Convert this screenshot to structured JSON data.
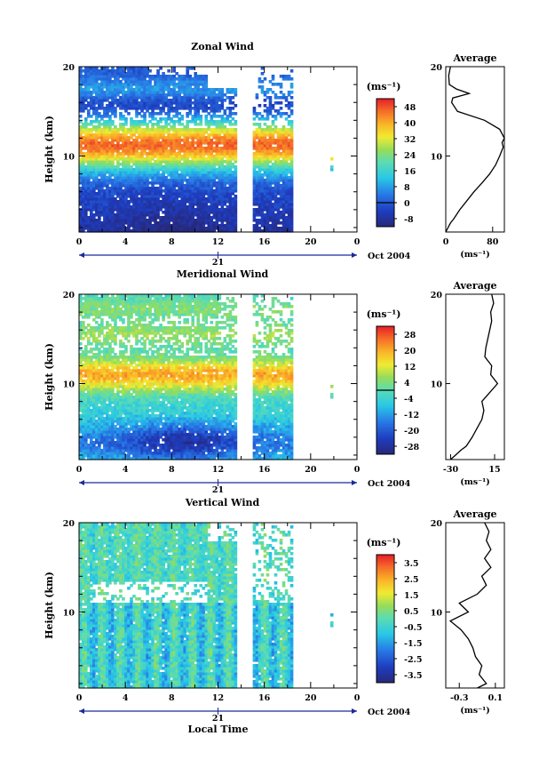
{
  "chart_data": [
    {
      "type": "heatmap",
      "title": "Zonal Wind",
      "ylabel": "Height (km)",
      "xlabel": "",
      "x_ticks": [
        "0",
        "4",
        "8",
        "12",
        "16",
        "20",
        "0"
      ],
      "y_ticks": [
        "10",
        "20"
      ],
      "xlim": [
        0,
        24
      ],
      "ylim": [
        1.5,
        20
      ],
      "date_tick": "21",
      "date_label": "Oct 2004",
      "colorbar": {
        "unit": "(ms⁻¹)",
        "ticks": [
          "48",
          "40",
          "32",
          "24",
          "16",
          "8",
          "0",
          "-8"
        ],
        "range": [
          -12,
          52
        ],
        "zero_line": 0
      },
      "field": "zonal",
      "data_gap": [
        [
          13.7,
          15.0
        ]
      ],
      "data_end": 18.5,
      "profile": {
        "title": "Average",
        "xlabel": "(ms⁻¹)",
        "x_ticks": [
          "0",
          "80"
        ],
        "xlim": [
          0,
          100
        ],
        "heights": [
          1.5,
          2,
          2.5,
          3,
          4,
          5,
          6,
          7,
          8,
          9,
          10,
          11,
          11.5,
          12,
          13,
          14,
          15,
          16,
          16.5,
          17,
          17.5,
          18,
          19,
          20
        ],
        "values": [
          0,
          4,
          8,
          14,
          24,
          36,
          48,
          62,
          75,
          85,
          92,
          98,
          96,
          100,
          92,
          66,
          20,
          10,
          12,
          40,
          18,
          6,
          5,
          8
        ]
      }
    },
    {
      "type": "heatmap",
      "title": "Meridional Wind",
      "ylabel": "Height (km)",
      "xlabel": "",
      "x_ticks": [
        "0",
        "4",
        "8",
        "12",
        "16",
        "20",
        "0"
      ],
      "y_ticks": [
        "10",
        "20"
      ],
      "xlim": [
        0,
        24
      ],
      "ylim": [
        1.5,
        20
      ],
      "date_tick": "21",
      "date_label": "Oct 2004",
      "colorbar": {
        "unit": "(ms⁻¹)",
        "ticks": [
          "28",
          "20",
          "12",
          "4",
          "-4",
          "-12",
          "-20",
          "-28"
        ],
        "range": [
          -32,
          32
        ],
        "zero_line": 0
      },
      "field": "meridional",
      "data_gap": [
        [
          13.7,
          15.0
        ]
      ],
      "data_end": 18.5,
      "profile": {
        "title": "Average",
        "xlabel": "(ms⁻¹)",
        "x_ticks": [
          "-30",
          "15"
        ],
        "xlim": [
          -35,
          25
        ],
        "heights": [
          1.5,
          2,
          2.5,
          3,
          4,
          5,
          6,
          7,
          8,
          9,
          10,
          11,
          12,
          13,
          14,
          15,
          16,
          17,
          18,
          19,
          20
        ],
        "values": [
          -30,
          -25,
          -20,
          -14,
          -8,
          -3,
          2,
          4,
          2,
          10,
          18,
          11,
          12,
          5,
          6,
          8,
          10,
          12,
          11,
          14,
          12
        ]
      }
    },
    {
      "type": "heatmap",
      "title": "Vertical Wind",
      "ylabel": "Height (km)",
      "xlabel": "Local Time",
      "x_ticks": [
        "0",
        "4",
        "8",
        "12",
        "16",
        "20",
        "0"
      ],
      "y_ticks": [
        "10",
        "20"
      ],
      "xlim": [
        0,
        24
      ],
      "ylim": [
        1.5,
        20
      ],
      "date_tick": "21",
      "date_label": "Oct 2004",
      "colorbar": {
        "unit": "(ms⁻¹)",
        "ticks": [
          "3.5",
          "2.5",
          "1.5",
          "0.5",
          "-0.5",
          "-1.5",
          "-2.5",
          "-3.5"
        ],
        "range": [
          -4,
          4
        ],
        "zero_line": null
      },
      "field": "vertical",
      "data_gap": [
        [
          13.7,
          15.0
        ]
      ],
      "data_end": 18.5,
      "profile": {
        "title": "Average",
        "xlabel": "(ms⁻¹)",
        "x_ticks": [
          "-0.3",
          "0.1"
        ],
        "xlim": [
          -0.45,
          0.2
        ],
        "heights": [
          1.5,
          2,
          3,
          4,
          5,
          6,
          7,
          8,
          9,
          10,
          11,
          12,
          13,
          14,
          15,
          16,
          17,
          18,
          19,
          20
        ],
        "values": [
          -0.1,
          0.0,
          -0.08,
          -0.05,
          -0.12,
          -0.15,
          -0.2,
          -0.28,
          -0.4,
          -0.2,
          -0.3,
          -0.1,
          0.0,
          -0.05,
          0.05,
          -0.02,
          0.05,
          0.0,
          0.03,
          -0.02
        ]
      }
    }
  ]
}
